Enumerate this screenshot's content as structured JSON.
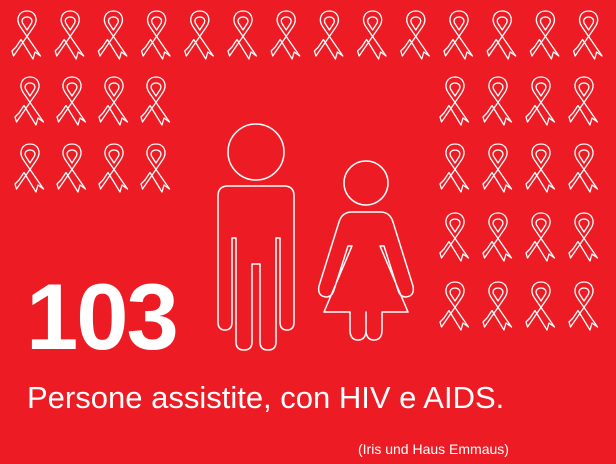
{
  "colors": {
    "background": "#ed1c24",
    "foreground": "#ffffff"
  },
  "icons": {
    "ribbon": "awareness-ribbon-icon",
    "man": "man-figure-icon",
    "woman": "woman-figure-icon"
  },
  "stat": {
    "number": "103",
    "caption": "Persone assistite, con HIV e AIDS."
  },
  "source": "(Iris und Haus Emmaus)"
}
